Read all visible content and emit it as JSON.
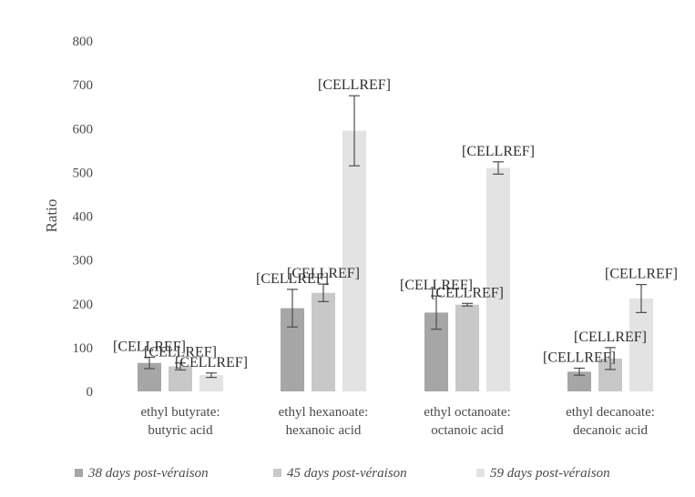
{
  "chart_data": {
    "type": "bar",
    "ylabel": "Ratio",
    "xlabel": "",
    "ylim": [
      0,
      800
    ],
    "yticks": [
      0,
      100,
      200,
      300,
      400,
      500,
      600,
      700,
      800
    ],
    "grid": false,
    "legend_position": "bottom",
    "categories": [
      [
        "ethyl butyrate:",
        "butyric acid"
      ],
      [
        "ethyl hexanoate:",
        "hexanoic acid"
      ],
      [
        "ethyl octanoate:",
        "octanoic acid"
      ],
      [
        "ethyl decanoate:",
        "decanoic acid"
      ]
    ],
    "series": [
      {
        "name": "38 days post-véraison",
        "color": "#a6a6a6",
        "values": [
          65,
          190,
          180,
          45
        ],
        "errors": [
          13,
          43,
          38,
          8
        ]
      },
      {
        "name": "45 days post-véraison",
        "color": "#c8c8c8",
        "values": [
          57,
          225,
          198,
          75
        ],
        "errors": [
          8,
          20,
          3,
          25
        ]
      },
      {
        "name": "59 days post-véraison",
        "color": "#e3e3e3",
        "values": [
          37,
          595,
          510,
          212
        ],
        "errors": [
          5,
          80,
          14,
          32
        ]
      }
    ],
    "data_labels": [
      [
        "[CELLREF]",
        "[CELLREF]",
        "[CELLREF]",
        "[CELLREF]"
      ],
      [
        "[CELLREF]",
        "[CELLREF]",
        "[CELLREF]",
        "[CELLREF]"
      ],
      [
        "[CELLREF]",
        "[CELLREF]",
        "[CELLREF]",
        "[CELLREF]"
      ]
    ]
  }
}
